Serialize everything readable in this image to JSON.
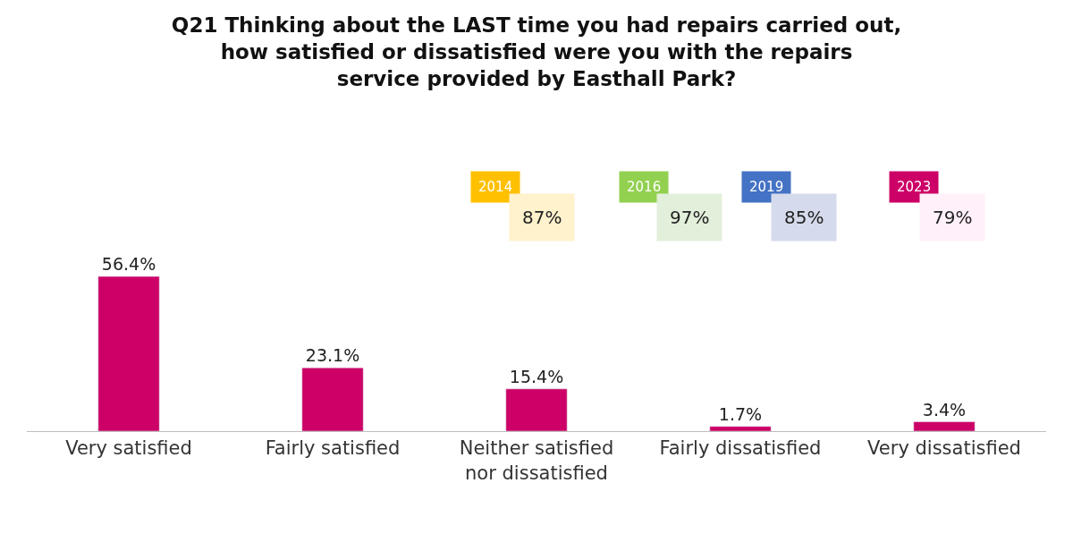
{
  "chart_data": {
    "type": "bar",
    "title": "Q21 Thinking about the LAST time you had repairs carried out, how satisfied or dissatisfied were you with the repairs service provided by Easthall Park?",
    "categories": [
      "Very satisfied",
      "Fairly satisfied",
      "Neither satisfied nor dissatisfied",
      "Fairly dissatisfied",
      "Very dissatisfied"
    ],
    "values": [
      56.4,
      23.1,
      15.4,
      1.7,
      3.4
    ],
    "value_labels": [
      "56.4%",
      "23.1%",
      "15.4%",
      "1.7%",
      "3.4%"
    ],
    "color": "#cc0066",
    "annotations": [
      "2014",
      "87%",
      "2016",
      "97%",
      "2019",
      "85%",
      "2023",
      "79%"
    ],
    "legend": false
  }
}
